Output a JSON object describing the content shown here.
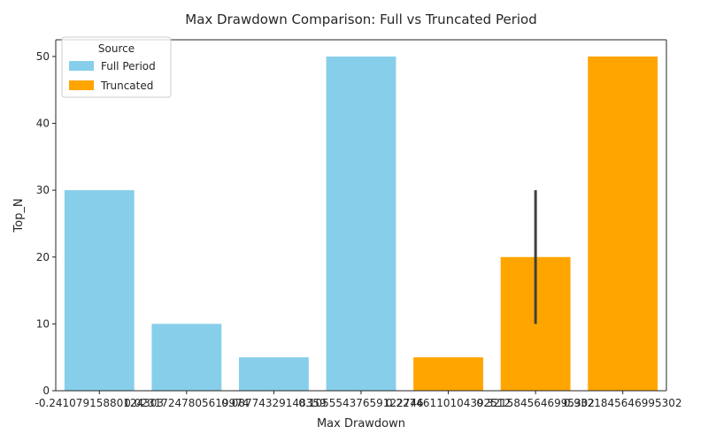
{
  "chart_data": {
    "type": "bar",
    "title": "Max Drawdown Comparison: Full vs Truncated Period",
    "xlabel": "Max Drawdown",
    "ylabel": "Top_N",
    "ylim": [
      0,
      52.5
    ],
    "yticks": [
      0,
      10,
      20,
      30,
      40,
      50
    ],
    "grid": false,
    "legend": {
      "title": "Source",
      "placement": "top-left",
      "entries": [
        {
          "name": "Full Period",
          "color": "#87CEEB"
        },
        {
          "name": "Truncated",
          "color": "#FFA500"
        }
      ]
    },
    "categories": [
      "-0.24107915880124303",
      "0.02317247805619974",
      "0.08774329148359",
      "0.10555437659122746",
      "0.22746110104392512",
      "0.3215845646995302",
      "0.9321845646995302"
    ],
    "bars": [
      {
        "category": 0,
        "series": "Full Period",
        "value": 30
      },
      {
        "category": 1,
        "series": "Full Period",
        "value": 10
      },
      {
        "category": 2,
        "series": "Full Period",
        "value": 5
      },
      {
        "category": 3,
        "series": "Full Period",
        "value": 50
      },
      {
        "category": 4,
        "series": "Truncated",
        "value": 5
      },
      {
        "category": 5,
        "series": "Truncated",
        "value": 20,
        "err_low": 10,
        "err_high": 30
      },
      {
        "category": 6,
        "series": "Truncated",
        "value": 50
      }
    ],
    "colors": {
      "Full Period": "#87CEEB",
      "Truncated": "#FFA500",
      "errorbar": "#404040"
    }
  }
}
